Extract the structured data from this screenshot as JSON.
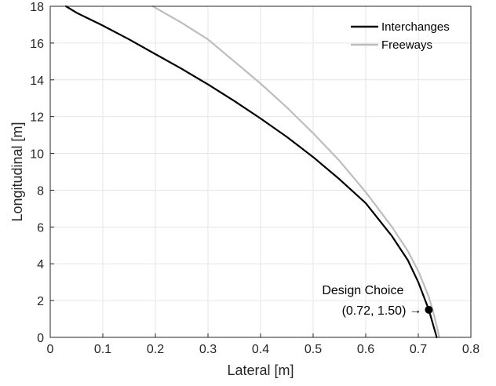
{
  "chart_data": {
    "type": "line",
    "title": "",
    "xlabel": "Lateral [m]",
    "ylabel": "Longitudinal [m]",
    "xlim": [
      0,
      0.8
    ],
    "ylim": [
      0,
      18
    ],
    "xticks": [
      0,
      0.1,
      0.2,
      0.3,
      0.4,
      0.5,
      0.6,
      0.7,
      0.8
    ],
    "xtick_labels": [
      "0",
      "0.1",
      "0.2",
      "0.3",
      "0.4",
      "0.5",
      "0.6",
      "0.7",
      "0.8"
    ],
    "yticks": [
      0,
      2,
      4,
      6,
      8,
      10,
      12,
      14,
      16,
      18
    ],
    "ytick_labels": [
      "0",
      "2",
      "4",
      "6",
      "8",
      "10",
      "12",
      "14",
      "16",
      "18"
    ],
    "grid": true,
    "legend": "top-right",
    "series": [
      {
        "name": "Interchanges",
        "color": "#000000",
        "x": [
          0.735,
          0.72,
          0.7,
          0.68,
          0.65,
          0.6,
          0.55,
          0.5,
          0.45,
          0.4,
          0.35,
          0.3,
          0.25,
          0.2,
          0.15,
          0.1,
          0.05,
          0.03
        ],
        "y": [
          0,
          1.5,
          3.0,
          4.2,
          5.5,
          7.3,
          8.6,
          9.8,
          10.9,
          11.9,
          12.85,
          13.75,
          14.6,
          15.4,
          16.2,
          16.95,
          17.65,
          18.0
        ]
      },
      {
        "name": "Freeways",
        "color": "#bdbdbd",
        "x": [
          0.74,
          0.73,
          0.72,
          0.7,
          0.68,
          0.65,
          0.6,
          0.55,
          0.5,
          0.45,
          0.4,
          0.35,
          0.3,
          0.25,
          0.195
        ],
        "y": [
          0,
          1.2,
          2.2,
          3.6,
          4.7,
          6.0,
          7.9,
          9.6,
          11.1,
          12.5,
          13.8,
          15.0,
          16.2,
          17.1,
          18.0
        ]
      }
    ],
    "annotation": {
      "title": "Design Choice",
      "label": "(0.72, 1.50)",
      "arrow": "→",
      "point": [
        0.72,
        1.5
      ],
      "color": "#000000"
    }
  }
}
